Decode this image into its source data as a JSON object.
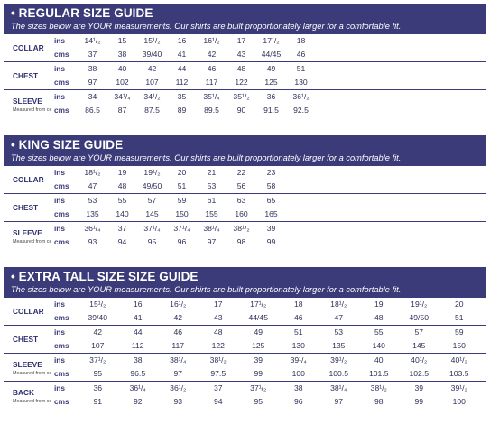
{
  "regular": {
    "title": "• REGULAR SIZE GUIDE",
    "subtitle": "The sizes below are YOUR measurements. Our shirts are built proportionately larger for a comfortable fit.",
    "groups": [
      {
        "label": "COLLAR",
        "note": "",
        "ins": [
          "14¹/₂",
          "15",
          "15¹/₂",
          "16",
          "16¹/₂",
          "17",
          "17¹/₂",
          "18"
        ],
        "cms": [
          "37",
          "38",
          "39/40",
          "41",
          "42",
          "43",
          "44/45",
          "46"
        ]
      },
      {
        "label": "CHEST",
        "note": "",
        "ins": [
          "38",
          "40",
          "42",
          "44",
          "46",
          "48",
          "49",
          "51"
        ],
        "cms": [
          "97",
          "102",
          "107",
          "112",
          "117",
          "122",
          "125",
          "130"
        ]
      },
      {
        "label": "SLEEVE",
        "note": "Measured from centre of back",
        "ins": [
          "34",
          "34¹/₄",
          "34¹/₂",
          "35",
          "35¹/₄",
          "35¹/₂",
          "36",
          "36¹/₂"
        ],
        "cms": [
          "86.5",
          "87",
          "87.5",
          "89",
          "89.5",
          "90",
          "91.5",
          "92.5"
        ]
      }
    ]
  },
  "king": {
    "title": "• KING SIZE GUIDE",
    "subtitle": "The sizes below are YOUR measurements. Our shirts are built proportionately larger for a comfortable fit.",
    "groups": [
      {
        "label": "COLLAR",
        "note": "",
        "ins": [
          "18¹/₂",
          "19",
          "19¹/₂",
          "20",
          "21",
          "22",
          "23"
        ],
        "cms": [
          "47",
          "48",
          "49/50",
          "51",
          "53",
          "56",
          "58"
        ]
      },
      {
        "label": "CHEST",
        "note": "",
        "ins": [
          "53",
          "55",
          "57",
          "59",
          "61",
          "63",
          "65"
        ],
        "cms": [
          "135",
          "140",
          "145",
          "150",
          "155",
          "160",
          "165"
        ]
      },
      {
        "label": "SLEEVE",
        "note": "Measured from centre of back",
        "ins": [
          "36¹/₄",
          "37",
          "37¹/₄",
          "37¹/₄",
          "38¹/₄",
          "38¹/₂",
          "39"
        ],
        "cms": [
          "93",
          "94",
          "95",
          "96",
          "97",
          "98",
          "99"
        ]
      }
    ]
  },
  "extra": {
    "title": "• EXTRA TALL SIZE  SIZE GUIDE",
    "subtitle": "The sizes below are YOUR measurements. Our shirts are built proportionately larger for a comfortable fit.",
    "groups": [
      {
        "label": "COLLAR",
        "note": "",
        "ins": [
          "15¹/₂",
          "16",
          "16¹/₂",
          "17",
          "17¹/₂",
          "18",
          "18¹/₂",
          "19",
          "19¹/₂",
          "20"
        ],
        "cms": [
          "39/40",
          "41",
          "42",
          "43",
          "44/45",
          "46",
          "47",
          "48",
          "49/50",
          "51"
        ]
      },
      {
        "label": "CHEST",
        "note": "",
        "ins": [
          "42",
          "44",
          "46",
          "48",
          "49",
          "51",
          "53",
          "55",
          "57",
          "59"
        ],
        "cms": [
          "107",
          "112",
          "117",
          "122",
          "125",
          "130",
          "135",
          "140",
          "145",
          "150"
        ]
      },
      {
        "label": "SLEEVE",
        "note": "Measured from centre back with cuff",
        "ins": [
          "37¹/₂",
          "38",
          "38¹/₄",
          "38¹/₂",
          "39",
          "39¹/₄",
          "39¹/₂",
          "40",
          "40¹/₂",
          "40¹/₂"
        ],
        "cms": [
          "95",
          "96.5",
          "97",
          "97.5",
          "99",
          "100",
          "100.5",
          "101.5",
          "102.5",
          "103.5"
        ]
      },
      {
        "label": "BACK",
        "note": "Measured from centre back",
        "ins": [
          "36",
          "36¹/₄",
          "36¹/₂",
          "37",
          "37¹/₂",
          "38",
          "38¹/₄",
          "38¹/₂",
          "39",
          "39¹/₂"
        ],
        "cms": [
          "91",
          "92",
          "93",
          "94",
          "95",
          "96",
          "97",
          "98",
          "99",
          "100"
        ]
      }
    ]
  },
  "units": {
    "ins": "ins",
    "cms": "cms"
  }
}
